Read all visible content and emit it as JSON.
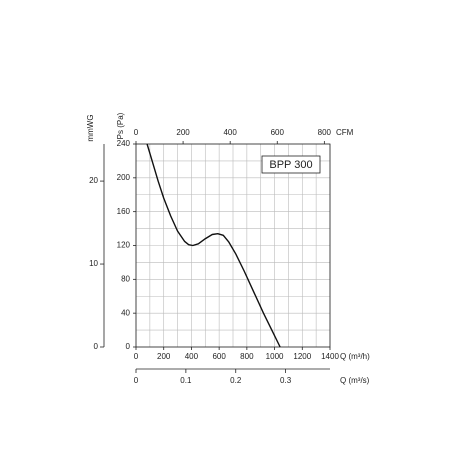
{
  "chart_data": {
    "type": "line",
    "annotation": "BPP 300",
    "x": [
      80,
      120,
      160,
      200,
      250,
      300,
      350,
      380,
      410,
      450,
      500,
      550,
      590,
      630,
      670,
      720,
      780,
      850,
      920,
      980,
      1040
    ],
    "series": [
      {
        "color": "#111111",
        "values": [
          240,
          218,
          196,
          176,
          155,
          137,
          125,
          121,
          120,
          122,
          128,
          133,
          134,
          132,
          124,
          110,
          90,
          65,
          40,
          20,
          0
        ]
      }
    ],
    "xlim": [
      0,
      1400
    ],
    "xticks": [
      0,
      200,
      400,
      600,
      800,
      1000,
      1200,
      1400
    ],
    "xlabel": "Q (m³/h)",
    "x2lim": [
      0,
      824
    ],
    "x2ticks": [
      0,
      200,
      400,
      600,
      800
    ],
    "x2label": "CFM",
    "x3lim": [
      0,
      0.389
    ],
    "x3ticks": [
      0,
      0.1,
      0.2,
      0.3
    ],
    "x3label": "Q (m³/s)",
    "ylim": [
      0,
      240
    ],
    "yticks": [
      0,
      40,
      80,
      120,
      160,
      200,
      240
    ],
    "ylabel": "Ps (Pa)",
    "y2lim": [
      0,
      24.47
    ],
    "y2ticks": [
      0,
      10,
      20
    ],
    "y2label": "mmWG",
    "xgrid": [
      100,
      300,
      500,
      700,
      900,
      1100,
      1300
    ],
    "ygrid": [
      20,
      60,
      100,
      140,
      180,
      220
    ],
    "grid": true
  }
}
